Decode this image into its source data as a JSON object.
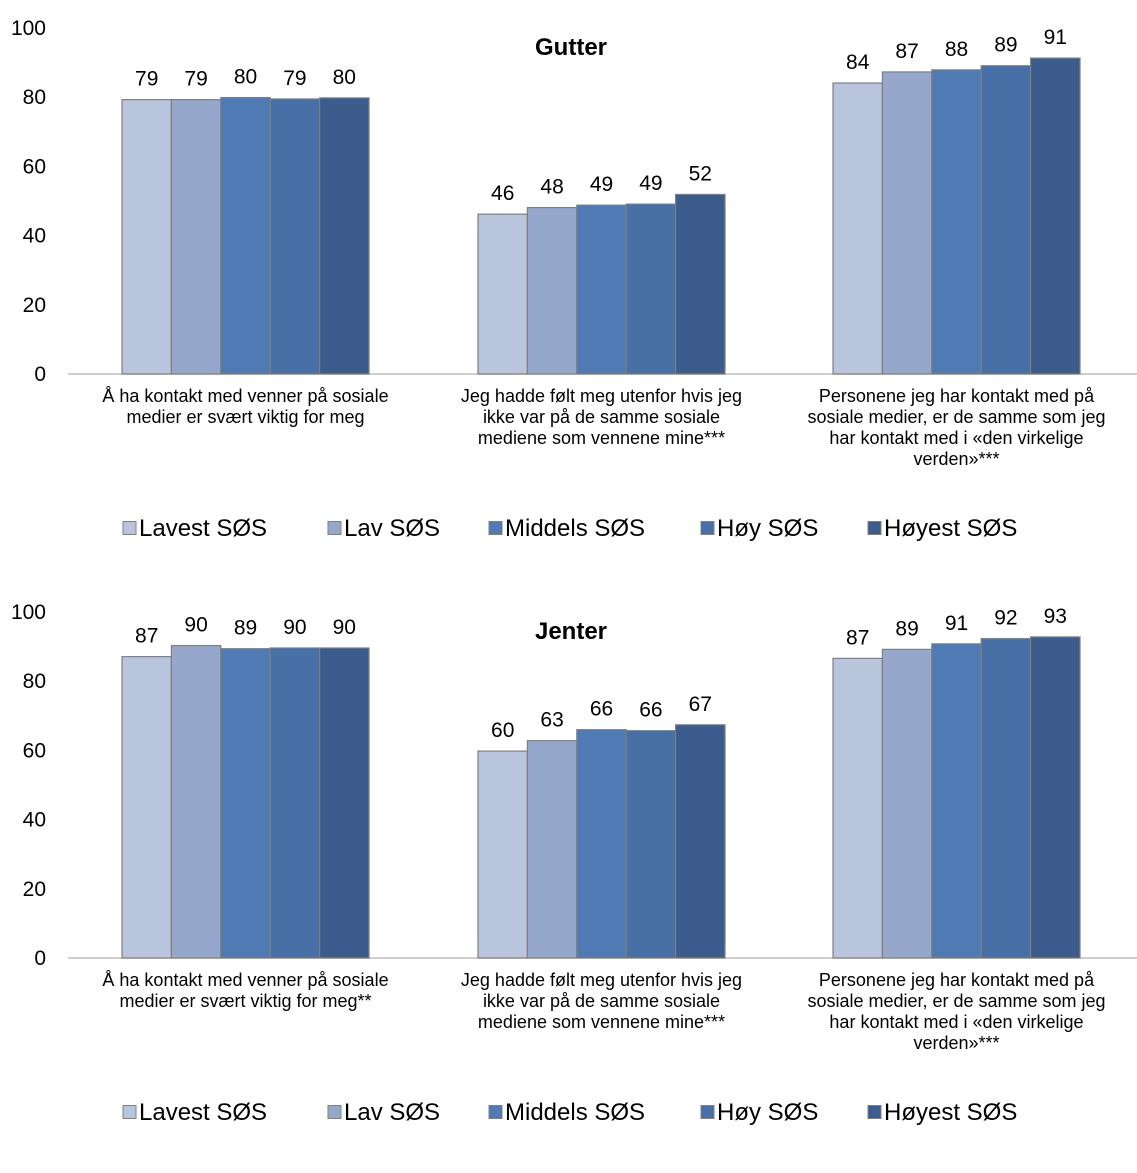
{
  "chart_data": [
    {
      "type": "bar",
      "title": "Gutter",
      "ylim": [
        0,
        100
      ],
      "yticks": [
        0,
        20,
        40,
        60,
        80,
        100
      ],
      "grid": false,
      "legend_position": "bottom",
      "categories": [
        [
          "Å ha kontakt med venner på sosiale",
          "medier er svært viktig for meg"
        ],
        [
          "Jeg hadde følt meg utenfor hvis jeg",
          "ikke var på de samme sosiale",
          "mediene som vennene mine***"
        ],
        [
          "Personene jeg har kontakt med på",
          "sosiale medier, er de samme som jeg",
          "har kontakt med i «den virkelige",
          "verden»***"
        ]
      ],
      "series": [
        {
          "name": "Lavest SØS",
          "color": "#b9c5dd",
          "values": [
            79,
            46,
            84
          ]
        },
        {
          "name": "Lav SØS",
          "color": "#95a8cb",
          "values": [
            79,
            48,
            87
          ]
        },
        {
          "name": "Middels SØS",
          "color": "#4f7ab4",
          "values": [
            80,
            49,
            88
          ]
        },
        {
          "name": "Høy SØS",
          "color": "#4670a6",
          "values": [
            79,
            49,
            89
          ]
        },
        {
          "name": "Høyest SØS",
          "color": "#3b5c8c",
          "values": [
            80,
            52,
            91
          ]
        }
      ],
      "exact_values": [
        [
          79.3,
          46.2,
          84.1
        ],
        [
          79.3,
          48.1,
          87.3
        ],
        [
          79.9,
          48.8,
          87.9
        ],
        [
          79.5,
          49.1,
          89.1
        ],
        [
          79.8,
          51.9,
          91.3
        ]
      ]
    },
    {
      "type": "bar",
      "title": "Jenter",
      "ylim": [
        0,
        100
      ],
      "yticks": [
        0,
        20,
        40,
        60,
        80,
        100
      ],
      "grid": false,
      "legend_position": "bottom",
      "categories": [
        [
          "Å ha kontakt med venner på sosiale",
          "medier er svært viktig for meg**"
        ],
        [
          "Jeg hadde følt meg utenfor hvis jeg",
          "ikke var på de samme sosiale",
          "mediene som vennene mine***"
        ],
        [
          "Personene jeg har kontakt med på",
          "sosiale medier, er de samme som jeg",
          "har kontakt med i «den virkelige",
          "verden»***"
        ]
      ],
      "series": [
        {
          "name": "Lavest SØS",
          "color": "#b9c5dd",
          "values": [
            87,
            60,
            87
          ]
        },
        {
          "name": "Lav SØS",
          "color": "#95a8cb",
          "values": [
            90,
            63,
            89
          ]
        },
        {
          "name": "Middels SØS",
          "color": "#4f7ab4",
          "values": [
            89,
            66,
            91
          ]
        },
        {
          "name": "Høy SØS",
          "color": "#4670a6",
          "values": [
            90,
            66,
            92
          ]
        },
        {
          "name": "Høyest SØS",
          "color": "#3b5c8c",
          "values": [
            90,
            67,
            93
          ]
        }
      ],
      "exact_values": [
        [
          87.1,
          59.8,
          86.6
        ],
        [
          90.3,
          62.8,
          89.2
        ],
        [
          89.4,
          66.0,
          90.8
        ],
        [
          89.6,
          65.7,
          92.3
        ],
        [
          89.6,
          67.4,
          92.8
        ]
      ]
    }
  ]
}
